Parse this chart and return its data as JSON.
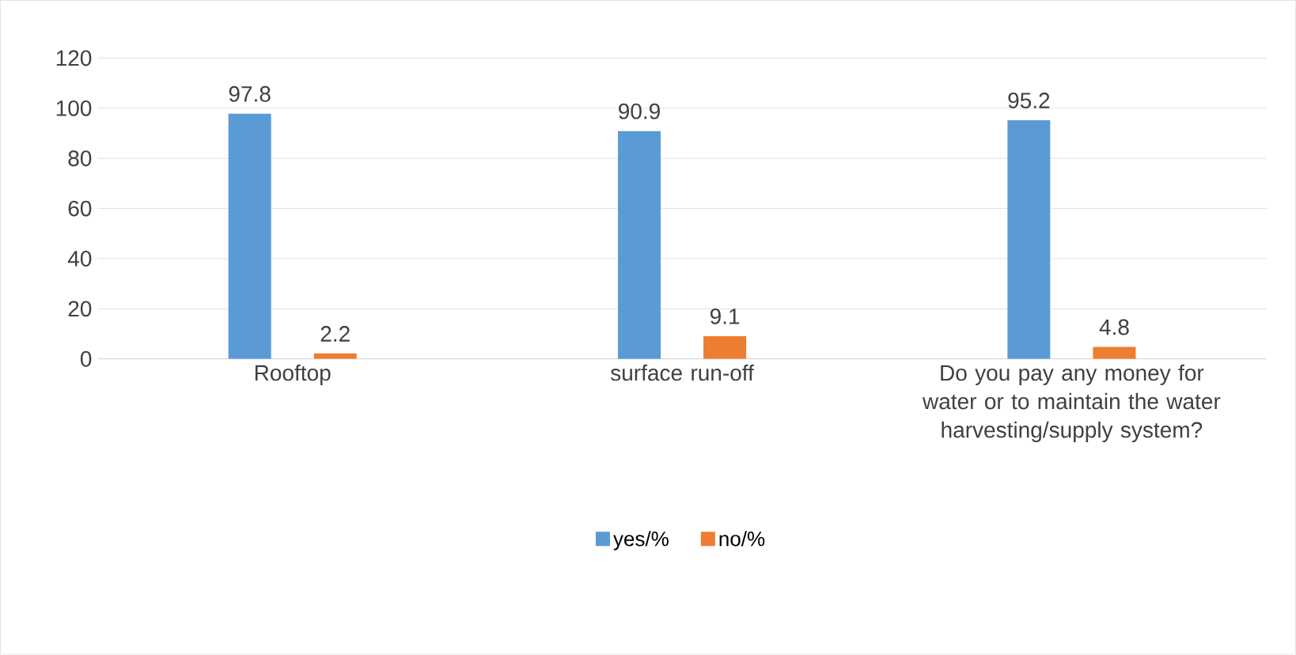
{
  "chart_data": {
    "type": "bar",
    "categories": [
      "Rooftop",
      "surface run-off",
      "Do you pay any money for water or to maintain the water harvesting/supply system?"
    ],
    "series": [
      {
        "name": "yes/%",
        "color": "#5b9bd5",
        "values": [
          97.8,
          90.9,
          95.2
        ]
      },
      {
        "name": "no/%",
        "color": "#ed7d31",
        "values": [
          2.2,
          9.1,
          4.8
        ]
      }
    ],
    "ylim": [
      0,
      120
    ],
    "yticks": [
      0,
      20,
      40,
      60,
      80,
      100,
      120
    ],
    "grid": "y",
    "legend": "bottom",
    "data_labels": true
  }
}
